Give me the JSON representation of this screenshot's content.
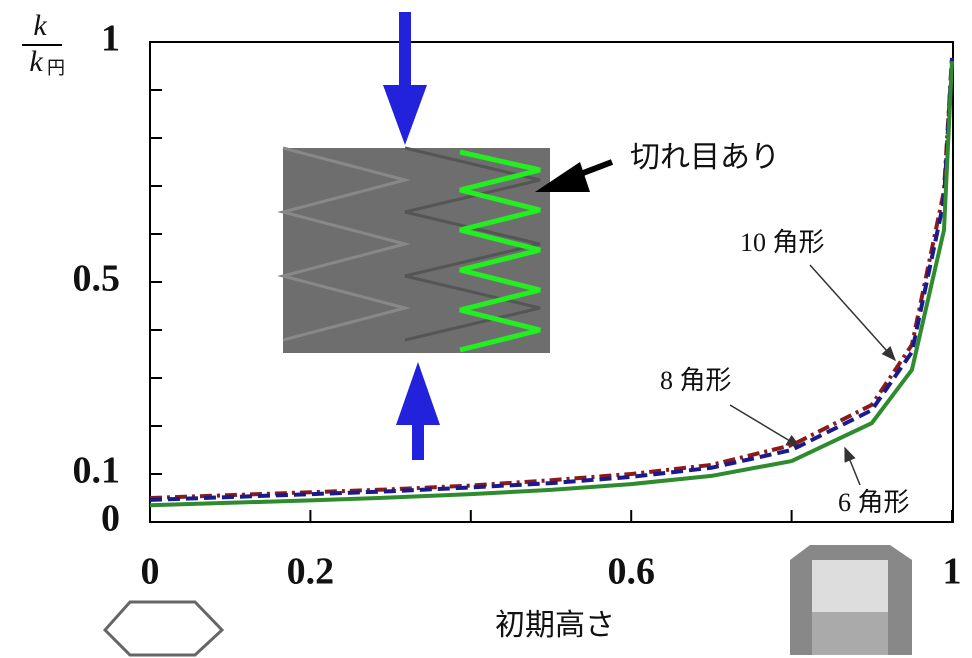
{
  "chart_data": {
    "type": "line",
    "ylabel": {
      "numerator": "k",
      "denominator": "k",
      "subscript": "円"
    },
    "xlabel": "初期高さ",
    "x": [
      0,
      0.1,
      0.2,
      0.3,
      0.4,
      0.5,
      0.6,
      0.7,
      0.8,
      0.9,
      0.95,
      0.99,
      1
    ],
    "series": [
      {
        "name": "10 角形",
        "color": "#8b1a1a",
        "linestyle": "dashdot",
        "values": [
          0.05,
          0.056,
          0.062,
          0.068,
          0.076,
          0.087,
          0.1,
          0.119,
          0.16,
          0.244,
          0.369,
          0.69,
          0.97
        ]
      },
      {
        "name": "8 角形",
        "color": "#1a1a8c",
        "linestyle": "dashed",
        "values": [
          0.046,
          0.052,
          0.058,
          0.064,
          0.072,
          0.081,
          0.094,
          0.113,
          0.15,
          0.233,
          0.354,
          0.67,
          0.967
        ]
      },
      {
        "name": "6 角形",
        "color": "#2e8b2e",
        "linestyle": "solid",
        "values": [
          0.035,
          0.04,
          0.045,
          0.051,
          0.058,
          0.067,
          0.079,
          0.096,
          0.127,
          0.206,
          0.317,
          0.608,
          0.96
        ]
      }
    ],
    "xlim": [
      0,
      1
    ],
    "ylim": [
      0,
      1
    ],
    "xticks": [
      0,
      0.2,
      0.6,
      1
    ],
    "xminorticks": [
      0.4,
      0.8
    ],
    "yticks": [
      0,
      0.1,
      0.5,
      1
    ],
    "yminorticks": [
      0.2,
      0.3,
      0.4,
      0.6,
      0.7,
      0.8,
      0.9
    ],
    "annotation": "切れ目あり"
  }
}
